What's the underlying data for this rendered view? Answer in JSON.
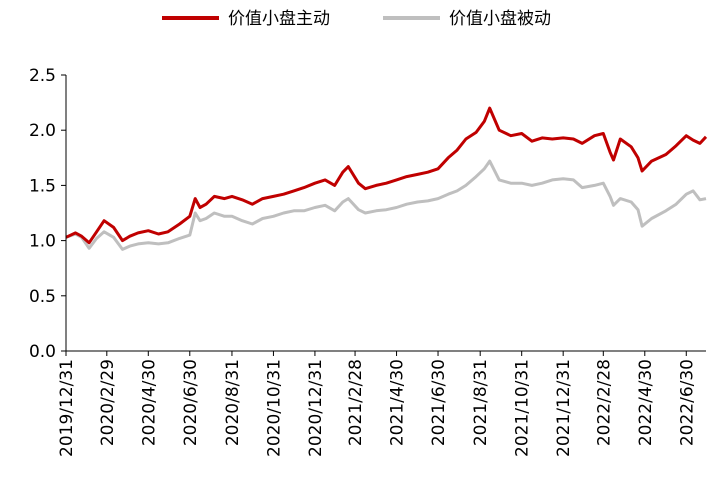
{
  "chart_data": {
    "type": "line",
    "legend_position": "top-center",
    "grid": false,
    "ylim": [
      0.0,
      2.5
    ],
    "y_ticks": [
      "0.0",
      "0.5",
      "1.0",
      "1.5",
      "2.0",
      "2.5"
    ],
    "x_ticks": [
      "2019/12/31",
      "2020/2/29",
      "2020/4/30",
      "2020/6/30",
      "2020/8/31",
      "2020/10/31",
      "2020/12/31",
      "2021/2/28",
      "2021/4/30",
      "2021/6/30",
      "2021/8/31",
      "2021/10/31",
      "2021/12/31",
      "2022/2/28",
      "2022/4/30",
      "2022/6/30"
    ],
    "x_range": [
      "2019/12/31",
      "2022/7/29"
    ],
    "series": [
      {
        "name": "价值小盘主动",
        "color": "#C00000",
        "points": [
          [
            "2019/12/31",
            1.03
          ],
          [
            "2020/1/14",
            1.07
          ],
          [
            "2020/1/23",
            1.04
          ],
          [
            "2020/2/3",
            0.98
          ],
          [
            "2020/2/14",
            1.08
          ],
          [
            "2020/2/25",
            1.18
          ],
          [
            "2020/3/10",
            1.12
          ],
          [
            "2020/3/23",
            1.0
          ],
          [
            "2020/4/3",
            1.04
          ],
          [
            "2020/4/15",
            1.07
          ],
          [
            "2020/4/30",
            1.09
          ],
          [
            "2020/5/15",
            1.06
          ],
          [
            "2020/5/29",
            1.08
          ],
          [
            "2020/6/15",
            1.15
          ],
          [
            "2020/6/30",
            1.22
          ],
          [
            "2020/7/8",
            1.38
          ],
          [
            "2020/7/15",
            1.3
          ],
          [
            "2020/7/24",
            1.33
          ],
          [
            "2020/8/5",
            1.4
          ],
          [
            "2020/8/20",
            1.38
          ],
          [
            "2020/8/31",
            1.4
          ],
          [
            "2020/9/15",
            1.37
          ],
          [
            "2020/9/30",
            1.33
          ],
          [
            "2020/10/15",
            1.38
          ],
          [
            "2020/10/31",
            1.4
          ],
          [
            "2020/11/15",
            1.42
          ],
          [
            "2020/11/30",
            1.45
          ],
          [
            "2020/12/15",
            1.48
          ],
          [
            "2020/12/31",
            1.52
          ],
          [
            "2021/1/15",
            1.55
          ],
          [
            "2021/1/29",
            1.5
          ],
          [
            "2021/2/10",
            1.62
          ],
          [
            "2021/2/18",
            1.67
          ],
          [
            "2021/3/5",
            1.52
          ],
          [
            "2021/3/15",
            1.47
          ],
          [
            "2021/3/31",
            1.5
          ],
          [
            "2021/4/15",
            1.52
          ],
          [
            "2021/4/30",
            1.55
          ],
          [
            "2021/5/15",
            1.58
          ],
          [
            "2021/5/31",
            1.6
          ],
          [
            "2021/6/15",
            1.62
          ],
          [
            "2021/6/30",
            1.65
          ],
          [
            "2021/7/15",
            1.75
          ],
          [
            "2021/7/28",
            1.82
          ],
          [
            "2021/8/10",
            1.92
          ],
          [
            "2021/8/25",
            1.98
          ],
          [
            "2021/9/6",
            2.08
          ],
          [
            "2021/9/14",
            2.2
          ],
          [
            "2021/9/28",
            2.0
          ],
          [
            "2021/10/15",
            1.95
          ],
          [
            "2021/10/31",
            1.97
          ],
          [
            "2021/11/15",
            1.9
          ],
          [
            "2021/11/30",
            1.93
          ],
          [
            "2021/12/15",
            1.92
          ],
          [
            "2021/12/31",
            1.93
          ],
          [
            "2022/1/15",
            1.92
          ],
          [
            "2022/1/28",
            1.88
          ],
          [
            "2022/2/15",
            1.95
          ],
          [
            "2022/2/28",
            1.97
          ],
          [
            "2022/3/10",
            1.8
          ],
          [
            "2022/3/15",
            1.73
          ],
          [
            "2022/3/25",
            1.92
          ],
          [
            "2022/4/10",
            1.85
          ],
          [
            "2022/4/20",
            1.75
          ],
          [
            "2022/4/26",
            1.63
          ],
          [
            "2022/5/10",
            1.72
          ],
          [
            "2022/5/31",
            1.78
          ],
          [
            "2022/6/15",
            1.86
          ],
          [
            "2022/6/30",
            1.95
          ],
          [
            "2022/7/10",
            1.91
          ],
          [
            "2022/7/20",
            1.88
          ],
          [
            "2022/7/29",
            1.94
          ]
        ]
      },
      {
        "name": "价值小盘被动",
        "color": "#BFBFBF",
        "points": [
          [
            "2019/12/31",
            1.03
          ],
          [
            "2020/1/14",
            1.06
          ],
          [
            "2020/1/23",
            1.03
          ],
          [
            "2020/2/3",
            0.93
          ],
          [
            "2020/2/14",
            1.02
          ],
          [
            "2020/2/25",
            1.08
          ],
          [
            "2020/3/10",
            1.03
          ],
          [
            "2020/3/23",
            0.92
          ],
          [
            "2020/4/3",
            0.95
          ],
          [
            "2020/4/15",
            0.97
          ],
          [
            "2020/4/30",
            0.98
          ],
          [
            "2020/5/15",
            0.97
          ],
          [
            "2020/5/29",
            0.98
          ],
          [
            "2020/6/15",
            1.02
          ],
          [
            "2020/6/30",
            1.05
          ],
          [
            "2020/7/8",
            1.25
          ],
          [
            "2020/7/15",
            1.18
          ],
          [
            "2020/7/24",
            1.2
          ],
          [
            "2020/8/5",
            1.25
          ],
          [
            "2020/8/20",
            1.22
          ],
          [
            "2020/8/31",
            1.22
          ],
          [
            "2020/9/15",
            1.18
          ],
          [
            "2020/9/30",
            1.15
          ],
          [
            "2020/10/15",
            1.2
          ],
          [
            "2020/10/31",
            1.22
          ],
          [
            "2020/11/15",
            1.25
          ],
          [
            "2020/11/30",
            1.27
          ],
          [
            "2020/12/15",
            1.27
          ],
          [
            "2020/12/31",
            1.3
          ],
          [
            "2021/1/15",
            1.32
          ],
          [
            "2021/1/29",
            1.27
          ],
          [
            "2021/2/10",
            1.35
          ],
          [
            "2021/2/18",
            1.38
          ],
          [
            "2021/3/5",
            1.28
          ],
          [
            "2021/3/15",
            1.25
          ],
          [
            "2021/3/31",
            1.27
          ],
          [
            "2021/4/15",
            1.28
          ],
          [
            "2021/4/30",
            1.3
          ],
          [
            "2021/5/15",
            1.33
          ],
          [
            "2021/5/31",
            1.35
          ],
          [
            "2021/6/15",
            1.36
          ],
          [
            "2021/6/30",
            1.38
          ],
          [
            "2021/7/15",
            1.42
          ],
          [
            "2021/7/28",
            1.45
          ],
          [
            "2021/8/10",
            1.5
          ],
          [
            "2021/8/25",
            1.58
          ],
          [
            "2021/9/6",
            1.65
          ],
          [
            "2021/9/14",
            1.72
          ],
          [
            "2021/9/28",
            1.55
          ],
          [
            "2021/10/15",
            1.52
          ],
          [
            "2021/10/31",
            1.52
          ],
          [
            "2021/11/15",
            1.5
          ],
          [
            "2021/11/30",
            1.52
          ],
          [
            "2021/12/15",
            1.55
          ],
          [
            "2021/12/31",
            1.56
          ],
          [
            "2022/1/15",
            1.55
          ],
          [
            "2022/1/28",
            1.48
          ],
          [
            "2022/2/15",
            1.5
          ],
          [
            "2022/2/28",
            1.52
          ],
          [
            "2022/3/10",
            1.4
          ],
          [
            "2022/3/15",
            1.32
          ],
          [
            "2022/3/25",
            1.38
          ],
          [
            "2022/4/10",
            1.35
          ],
          [
            "2022/4/20",
            1.28
          ],
          [
            "2022/4/26",
            1.13
          ],
          [
            "2022/5/10",
            1.2
          ],
          [
            "2022/5/31",
            1.27
          ],
          [
            "2022/6/15",
            1.33
          ],
          [
            "2022/6/30",
            1.42
          ],
          [
            "2022/7/10",
            1.45
          ],
          [
            "2022/7/20",
            1.37
          ],
          [
            "2022/7/29",
            1.38
          ]
        ]
      }
    ]
  }
}
